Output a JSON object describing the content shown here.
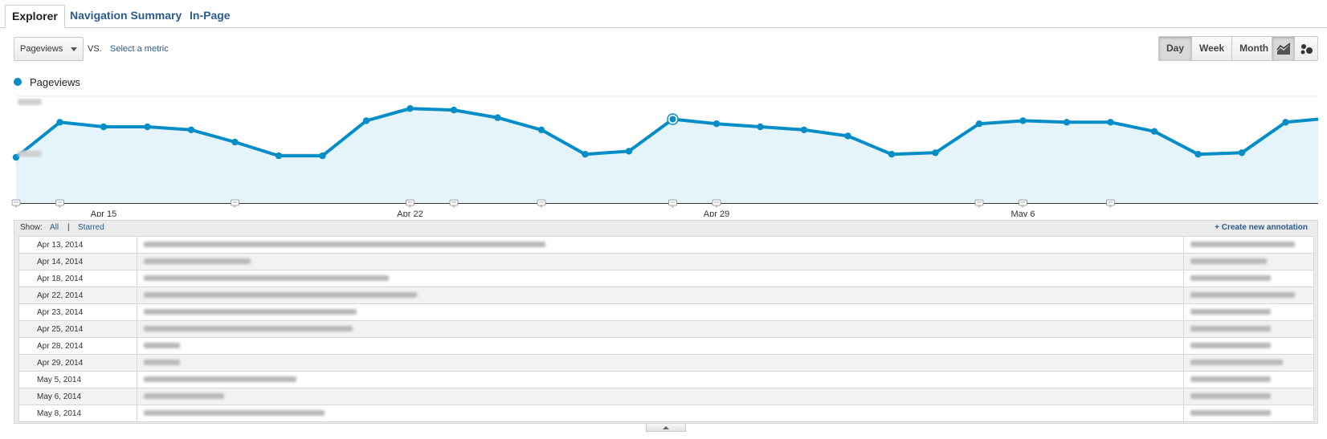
{
  "tabs": [
    {
      "label": "Explorer",
      "active": true
    },
    {
      "label": "Navigation Summary",
      "active": false
    },
    {
      "label": "In-Page",
      "active": false
    }
  ],
  "metric_selector": {
    "value": "Pageviews"
  },
  "vs_label": "VS.",
  "select_metric_label": "Select a metric",
  "period_buttons": [
    {
      "label": "Day",
      "active": true
    },
    {
      "label": "Week",
      "active": false
    },
    {
      "label": "Month",
      "active": false
    }
  ],
  "view_buttons": [
    {
      "icon": "line-chart-icon",
      "active": true
    },
    {
      "icon": "motion-chart-icon",
      "active": false
    }
  ],
  "legend": {
    "label": "Pageviews",
    "color": "#058dc7"
  },
  "chart_data": {
    "type": "area",
    "series": [
      {
        "name": "Pageviews",
        "color": "#058dc7",
        "values": [
          0.3,
          0.53,
          0.5,
          0.5,
          0.48,
          0.4,
          0.31,
          0.31,
          0.54,
          0.62,
          0.61,
          0.56,
          0.48,
          0.32,
          0.34,
          0.55,
          0.52,
          0.5,
          0.48,
          0.44,
          0.32,
          0.33,
          0.52,
          0.54,
          0.53,
          0.53,
          0.47,
          0.32,
          0.33,
          0.53,
          0.55
        ]
      }
    ],
    "x_start_label": "Apr 13, 2014",
    "x_tick_labels": [
      "Apr 15",
      "Apr 22",
      "Apr 29",
      "May 6"
    ],
    "x_tick_days": [
      2,
      9,
      16,
      23
    ],
    "y_tick_labels_hidden": true,
    "highlighted_day": 15,
    "annotation_days": [
      0,
      1,
      5,
      9,
      10,
      12,
      15,
      16,
      22,
      23,
      25
    ],
    "ylim": [
      0,
      0.7
    ]
  },
  "annotations": {
    "show_label": "Show:",
    "all_label": "All",
    "separator": "|",
    "starred_label": "Starred",
    "create_label": "+ Create new annotation",
    "rows": [
      {
        "date": "Apr 13, 2014"
      },
      {
        "date": "Apr 14, 2014"
      },
      {
        "date": "Apr 18, 2014"
      },
      {
        "date": "Apr 22, 2014"
      },
      {
        "date": "Apr 23, 2014"
      },
      {
        "date": "Apr 25, 2014"
      },
      {
        "date": "Apr 28, 2014"
      },
      {
        "date": "Apr 29, 2014"
      },
      {
        "date": "May 5, 2014"
      },
      {
        "date": "May 6, 2014"
      },
      {
        "date": "May 8, 2014"
      }
    ]
  }
}
